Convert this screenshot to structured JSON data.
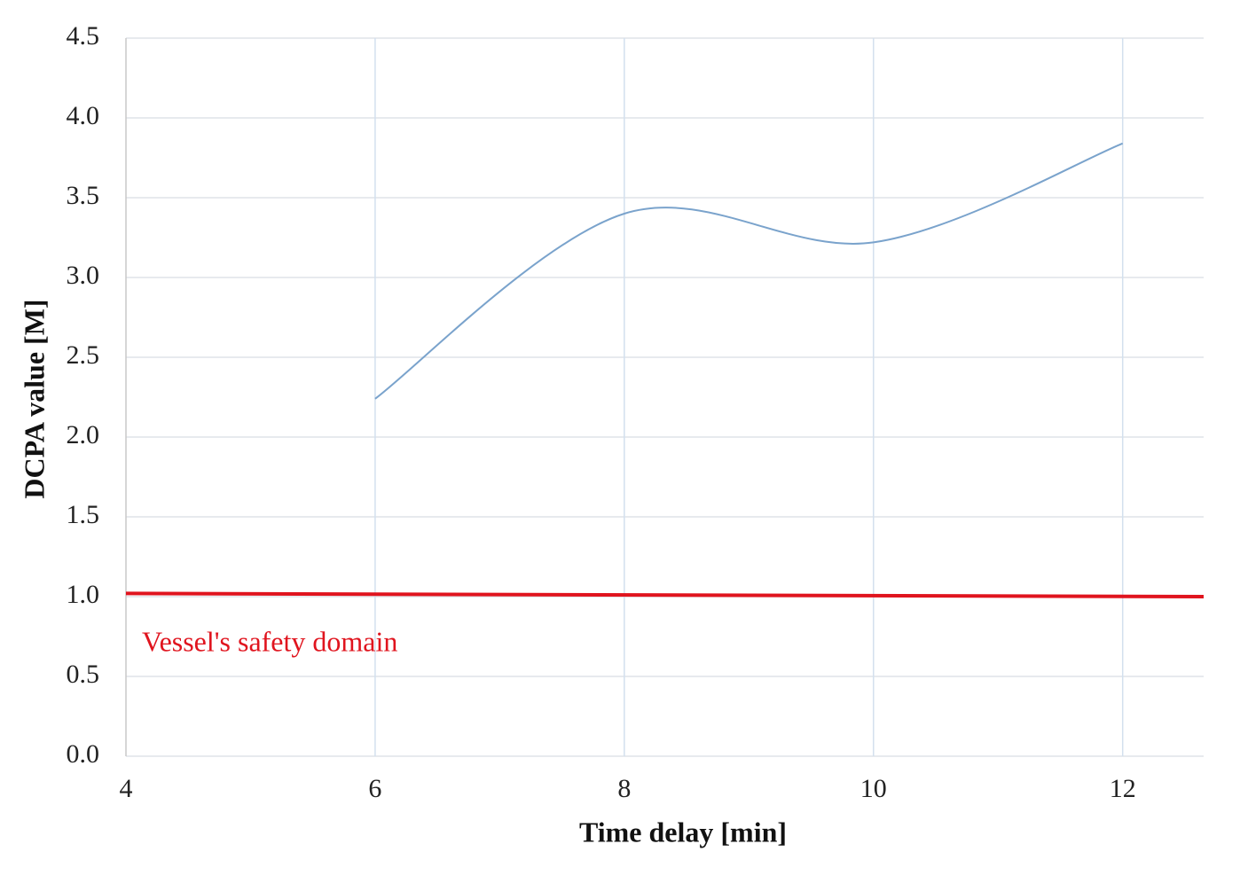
{
  "chart_data": {
    "type": "line",
    "x_label": "Time delay [min]",
    "y_label": "DCPA value [M]",
    "xlim": [
      4,
      12.65
    ],
    "xticks": [
      4,
      6,
      8,
      10,
      12
    ],
    "ylim": [
      0,
      4.5
    ],
    "yticks": [
      {
        "value": 0,
        "label": "0.0"
      },
      0.5,
      {
        "value": 1,
        "label": "1.0"
      },
      1.5,
      {
        "value": 2,
        "label": "2.0"
      },
      2.5,
      {
        "value": 3,
        "label": "3.0"
      },
      3.5,
      {
        "value": 4,
        "label": "4.0"
      },
      4.5
    ],
    "grid": true,
    "smooth": true,
    "series": [
      {
        "color": "#7aa3cc",
        "x": [
          6,
          8,
          10,
          12
        ],
        "values": [
          2.24,
          3.4,
          3.22,
          3.84
        ]
      },
      {
        "name": "Vessel's safety domain",
        "color": "#e0141e",
        "x": [
          4,
          12.65
        ],
        "values": [
          1.02,
          1.0
        ]
      }
    ]
  }
}
